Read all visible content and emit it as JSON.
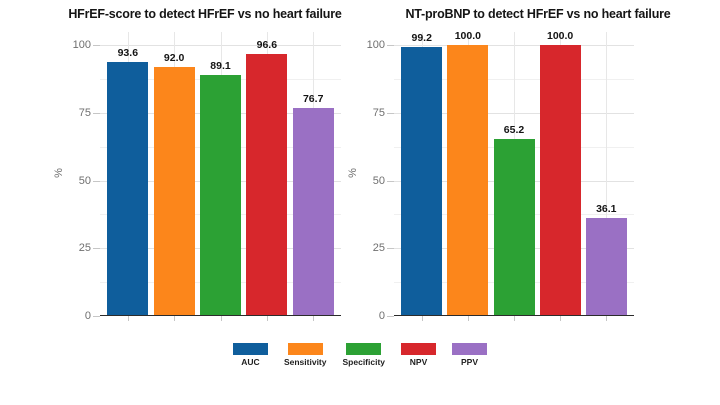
{
  "figure": {
    "background": "#ffffff"
  },
  "chart_data": [
    {
      "type": "bar",
      "title": "HFrEF-score to detect HFrEF vs no heart failure",
      "xlabel": "",
      "ylabel": "%",
      "ylim": [
        0,
        100
      ],
      "yticks": [
        0,
        25,
        50,
        75,
        100
      ],
      "yticks_minor": [
        12.5,
        37.5,
        62.5,
        87.5
      ],
      "grid": "on",
      "categories": [
        "AUC",
        "Sensitivity",
        "Specificity",
        "NPV",
        "PPV"
      ],
      "values": [
        93.6,
        92.0,
        89.1,
        96.6,
        76.7
      ],
      "value_labels": [
        "93.6",
        "92.0",
        "89.1",
        "96.6",
        "76.7"
      ],
      "bar_colors": [
        "#0f5e9c",
        "#fc861b",
        "#2ca134",
        "#d7272c",
        "#9a70c4"
      ]
    },
    {
      "type": "bar",
      "title": "NT-proBNP to detect HFrEF vs no heart failure",
      "xlabel": "",
      "ylabel": "%",
      "ylim": [
        0,
        100
      ],
      "yticks": [
        0,
        25,
        50,
        75,
        100
      ],
      "yticks_minor": [
        12.5,
        37.5,
        62.5,
        87.5
      ],
      "grid": "on",
      "categories": [
        "AUC",
        "Sensitivity",
        "Specificity",
        "NPV",
        "PPV"
      ],
      "values": [
        99.2,
        100.0,
        65.2,
        100.0,
        36.1
      ],
      "value_labels": [
        "99.2",
        "100.0",
        "65.2",
        "100.0",
        "36.1"
      ],
      "bar_colors": [
        "#0f5e9c",
        "#fc861b",
        "#2ca134",
        "#d7272c",
        "#9a70c4"
      ]
    }
  ],
  "legend": {
    "position": "bottom-center",
    "items": [
      {
        "label": "AUC",
        "color": "#0f5e9c"
      },
      {
        "label": "Sensitivity",
        "color": "#fc861b"
      },
      {
        "label": "Specificity",
        "color": "#2ca134"
      },
      {
        "label": "NPV",
        "color": "#d7272c"
      },
      {
        "label": "PPV",
        "color": "#9a70c4"
      }
    ]
  },
  "theme": {
    "grid_major_color": "#e2e2e2",
    "grid_minor_color": "#f0f0f0",
    "grid_vertical_color": "#e7e7e7",
    "axis_line_color": "#2b2b2b",
    "tick_mark_color": "#c6c6c6",
    "tick_label_color": "#6f6f6f",
    "title_color": "#151515",
    "value_label_color": "#141414",
    "legend_label_color": "#1f1f1f"
  }
}
